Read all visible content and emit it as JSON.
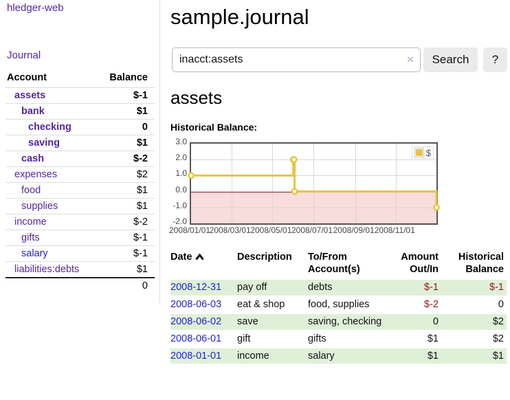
{
  "colors": {
    "link_purple": "#53279f",
    "link_blue": "#2323d3",
    "negative_strong": "#a01c1c",
    "negative_muted": "#c47c7c",
    "register_negative": "#8e1717",
    "row_green": "#dff0d8",
    "series_gold": "#e8c33f",
    "negative_region_pink": "#f9dcdc",
    "zero_line_red": "#8b1a1a"
  },
  "sidebar": {
    "brand_label": "hledger-web",
    "journal_label": "Journal",
    "accounts": {
      "header_account": "Account",
      "header_balance": "Balance",
      "rows": [
        {
          "account": "assets",
          "balance": "$-1",
          "depth": 0,
          "bold": true,
          "balance_style": "strong-neg"
        },
        {
          "account": "bank",
          "balance": "$1",
          "depth": 1,
          "bold": true,
          "balance_style": "normal"
        },
        {
          "account": "checking",
          "balance": "0",
          "depth": 2,
          "bold": true,
          "balance_style": "normal"
        },
        {
          "account": "saving",
          "balance": "$1",
          "depth": 2,
          "bold": true,
          "balance_style": "normal"
        },
        {
          "account": "cash",
          "balance": "$-2",
          "depth": 1,
          "bold": true,
          "balance_style": "strong-neg"
        },
        {
          "account": "expenses",
          "balance": "$2",
          "depth": 0,
          "bold": false,
          "balance_style": "normal"
        },
        {
          "account": "food",
          "balance": "$1",
          "depth": 1,
          "bold": false,
          "balance_style": "normal"
        },
        {
          "account": "supplies",
          "balance": "$1",
          "depth": 1,
          "bold": false,
          "balance_style": "normal"
        },
        {
          "account": "income",
          "balance": "$-2",
          "depth": 0,
          "bold": false,
          "balance_style": "muted-neg"
        },
        {
          "account": "gifts",
          "balance": "$-1",
          "depth": 1,
          "bold": false,
          "balance_style": "muted-neg"
        },
        {
          "account": "salary",
          "balance": "$-1",
          "depth": 1,
          "bold": false,
          "balance_style": "muted-neg",
          "link_style": "unvisited"
        },
        {
          "account": "liabilities:debts",
          "balance": "$1",
          "depth": 0,
          "bold": false,
          "balance_style": "normal"
        }
      ],
      "total": "0"
    }
  },
  "header": {
    "title": "sample.journal"
  },
  "search": {
    "value": "inacct:assets",
    "clear_icon": "×",
    "button_label": "Search",
    "help_label": "?"
  },
  "account_view": {
    "title": "assets",
    "section_label": "Historical Balance:"
  },
  "chart_data": {
    "type": "line",
    "title": "Historical Balance",
    "step": true,
    "series": [
      {
        "name": "$",
        "color": "#e8c33f",
        "points": [
          {
            "date": "2008-01-01",
            "value": 1
          },
          {
            "date": "2008-06-01",
            "value": 2
          },
          {
            "date": "2008-06-02",
            "value": 2
          },
          {
            "date": "2008-06-03",
            "value": 0
          },
          {
            "date": "2008-12-31",
            "value": -1
          }
        ]
      }
    ],
    "x_range": [
      "2008-01-01",
      "2008-12-31"
    ],
    "x_ticks": [
      "2008/01/01",
      "2008/03/01",
      "2008/05/01",
      "2008/07/01",
      "2008/09/01",
      "2008/11/01"
    ],
    "y_ticks": [
      "3.0",
      "2.0",
      "1.0",
      "0.0",
      "-1.0",
      "-2.0"
    ],
    "ylim": [
      -2,
      3
    ],
    "grid": true,
    "legend": {
      "position": "top-right",
      "label": "$"
    },
    "negative_region_fill": "#f9dcdc",
    "zero_line_color": "#8b1a1a"
  },
  "register": {
    "headers": {
      "date": "Date",
      "sort_icon": "chevron-up",
      "description": "Description",
      "account": "To/From Account(s)",
      "amount": "Amount Out/In",
      "balance": "Historical Balance"
    },
    "rows": [
      {
        "date": "2008-12-31",
        "description": "pay off",
        "accounts": "debts",
        "amount": "$-1",
        "amount_negative": true,
        "balance": "$-1",
        "balance_negative": true
      },
      {
        "date": "2008-06-03",
        "description": "eat & shop",
        "accounts": "food, supplies",
        "amount": "$-2",
        "amount_negative": true,
        "balance": "0",
        "balance_negative": false
      },
      {
        "date": "2008-06-02",
        "description": "save",
        "accounts": "saving, checking",
        "amount": "0",
        "amount_negative": false,
        "balance": "$2",
        "balance_negative": false
      },
      {
        "date": "2008-06-01",
        "description": "gift",
        "accounts": "gifts",
        "amount": "$1",
        "amount_negative": false,
        "balance": "$2",
        "balance_negative": false
      },
      {
        "date": "2008-01-01",
        "description": "income",
        "accounts": "salary",
        "amount": "$1",
        "amount_negative": false,
        "balance": "$1",
        "balance_negative": false
      }
    ]
  }
}
